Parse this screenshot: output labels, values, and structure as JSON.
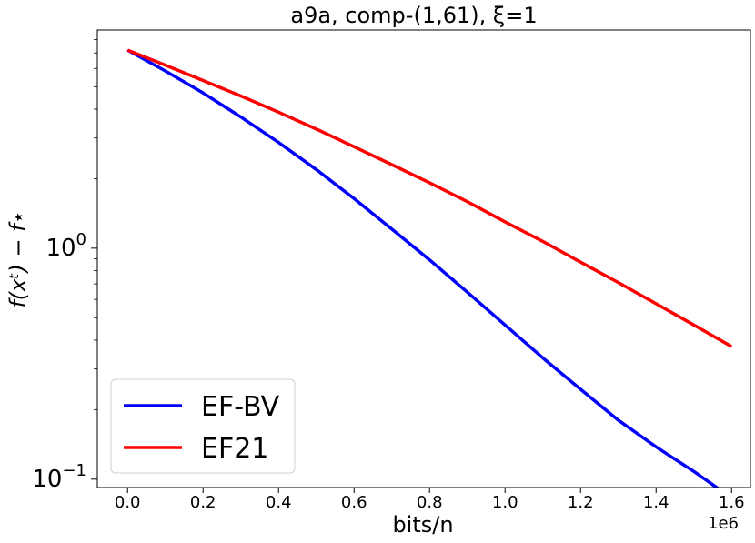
{
  "chart_data": {
    "type": "line",
    "title": "a9a, comp-(1,61), ξ=1",
    "xlabel": "bits/n",
    "ylabel": "f(xᵗ) − f⋆",
    "x_scale_note": "1e6",
    "y_scale": "log",
    "xlim": [
      -0.08,
      1.65
    ],
    "ylim": [
      0.092,
      8.8
    ],
    "x_ticks": [
      0.0,
      0.2,
      0.4,
      0.6,
      0.8,
      1.0,
      1.2,
      1.4,
      1.6
    ],
    "x_tick_labels": [
      "0.0",
      "0.2",
      "0.4",
      "0.6",
      "0.8",
      "1.0",
      "1.2",
      "1.4",
      "1.6"
    ],
    "y_ticks": [
      {
        "value": 1,
        "base": "10",
        "exp": "0"
      },
      {
        "value": 0.1,
        "base": "10",
        "exp": "−1"
      }
    ],
    "grid": false,
    "legend_position": "lower-left",
    "series": [
      {
        "name": "EF-BV",
        "color": "#0000ff",
        "x": [
          0.0,
          0.1,
          0.2,
          0.3,
          0.4,
          0.5,
          0.6,
          0.7,
          0.8,
          0.9,
          1.0,
          1.1,
          1.2,
          1.3,
          1.4,
          1.5,
          1.6
        ],
        "y": [
          7.2,
          5.85,
          4.7,
          3.7,
          2.87,
          2.19,
          1.64,
          1.21,
          0.89,
          0.645,
          0.465,
          0.335,
          0.245,
          0.18,
          0.138,
          0.108,
          0.083
        ]
      },
      {
        "name": "EF21",
        "color": "#ff0000",
        "x": [
          0.0,
          0.1,
          0.2,
          0.3,
          0.4,
          0.5,
          0.6,
          0.7,
          0.8,
          0.9,
          1.0,
          1.1,
          1.2,
          1.3,
          1.4,
          1.5,
          1.6
        ],
        "y": [
          7.2,
          6.2,
          5.32,
          4.56,
          3.88,
          3.28,
          2.75,
          2.3,
          1.92,
          1.59,
          1.3,
          1.07,
          0.87,
          0.71,
          0.575,
          0.465,
          0.375
        ]
      }
    ]
  }
}
